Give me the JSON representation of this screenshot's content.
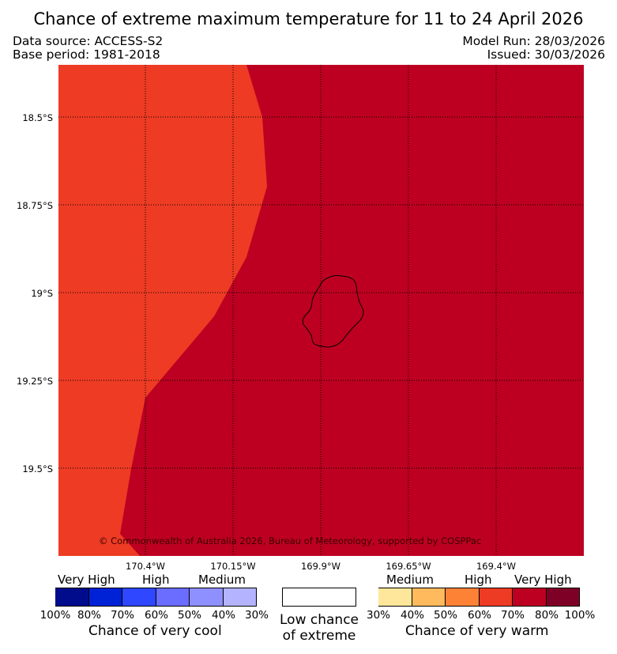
{
  "title": "Chance of extreme maximum temperature for 11 to 24 April 2026",
  "meta": {
    "data_source": "Data source: ACCESS-S2",
    "base_period": "Base period: 1981-2018",
    "model_run": "Model Run: 28/03/2026",
    "issued": "Issued: 30/03/2026"
  },
  "map": {
    "lat_labels": [
      "18.5°S",
      "18.75°S",
      "19°S",
      "19.25°S",
      "19.5°S"
    ],
    "lon_labels": [
      "170.4°W",
      "170.15°W",
      "169.9°W",
      "169.65°W",
      "169.4°W"
    ],
    "copyright": "© Commonwealth of Australia 2026, Bureau of Meteorology, supported by COSPPac",
    "regions": [
      {
        "name": "High chance of very warm (60-70%)",
        "color": "#ee3b24"
      },
      {
        "name": "Very high chance of very warm (70-80%)",
        "color": "#bd0021"
      }
    ]
  },
  "legend": {
    "cool": {
      "title": "Chance of very cool",
      "categories": [
        "Very High",
        "High",
        "Medium"
      ],
      "ticks": [
        "100%",
        "80%",
        "70%",
        "60%",
        "50%",
        "40%",
        "30%"
      ],
      "colors": [
        "#000c8c",
        "#0022d7",
        "#2e47ff",
        "#6a6dff",
        "#8f90ff",
        "#b3b3ff"
      ]
    },
    "neutral": {
      "line1": "Low chance",
      "line2": "of extreme",
      "color": "#ffffff"
    },
    "warm": {
      "title": "Chance of very warm",
      "categories": [
        "Medium",
        "High",
        "Very High"
      ],
      "ticks": [
        "30%",
        "40%",
        "50%",
        "60%",
        "70%",
        "80%",
        "100%"
      ],
      "colors": [
        "#fee79a",
        "#feba5c",
        "#fd8236",
        "#ee3b24",
        "#bd0021",
        "#7f0026"
      ]
    }
  }
}
